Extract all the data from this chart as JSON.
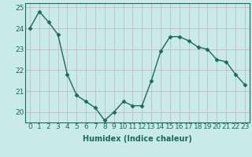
{
  "x": [
    0,
    1,
    2,
    3,
    4,
    5,
    6,
    7,
    8,
    9,
    10,
    11,
    12,
    13,
    14,
    15,
    16,
    17,
    18,
    19,
    20,
    21,
    22,
    23
  ],
  "y": [
    24.0,
    24.8,
    24.3,
    23.7,
    21.8,
    20.8,
    20.5,
    20.2,
    19.6,
    20.0,
    20.5,
    20.3,
    20.3,
    21.5,
    22.9,
    23.6,
    23.6,
    23.4,
    23.1,
    23.0,
    22.5,
    22.4,
    21.8,
    21.3
  ],
  "line_color": "#1a6b5a",
  "marker": "D",
  "marker_size": 2.5,
  "bg_color": "#c8eaea",
  "grid_color": "#c8b0b0",
  "ylim": [
    19.5,
    25.2
  ],
  "xlim": [
    -0.5,
    23.5
  ],
  "yticks": [
    20,
    21,
    22,
    23,
    24,
    25
  ],
  "xlabel": "Humidex (Indice chaleur)",
  "xlabel_fontsize": 7,
  "tick_fontsize": 6.5,
  "linewidth": 1.0
}
